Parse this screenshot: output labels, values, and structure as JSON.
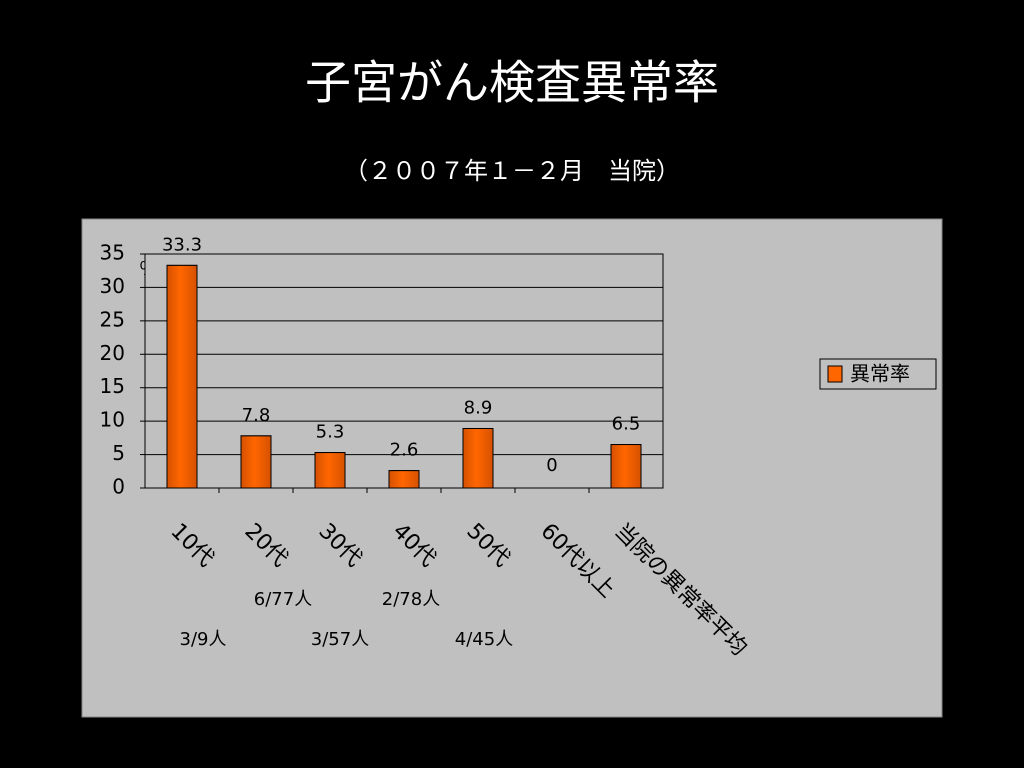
{
  "chart_data": {
    "type": "bar",
    "title": "子宮がん検査異常率",
    "subtitle": "（２００７年１－２月　当院）",
    "y_unit": "％",
    "categories": [
      "10代",
      "20代",
      "30代",
      "40代",
      "50代",
      "60代以上",
      "当院の異常率平均"
    ],
    "series": [
      {
        "name": "異常率",
        "color": "#ff6600",
        "values": [
          33.3,
          7.8,
          5.3,
          2.6,
          8.9,
          0,
          6.5
        ]
      }
    ],
    "ylim": [
      0,
      35
    ],
    "yticks": [
      0,
      5,
      10,
      15,
      20,
      25,
      30,
      35
    ],
    "grid": true,
    "legend": "right",
    "annotations": [
      "6/77人",
      "2/78人",
      "3/9人",
      "3/57人",
      "4/45人"
    ]
  }
}
